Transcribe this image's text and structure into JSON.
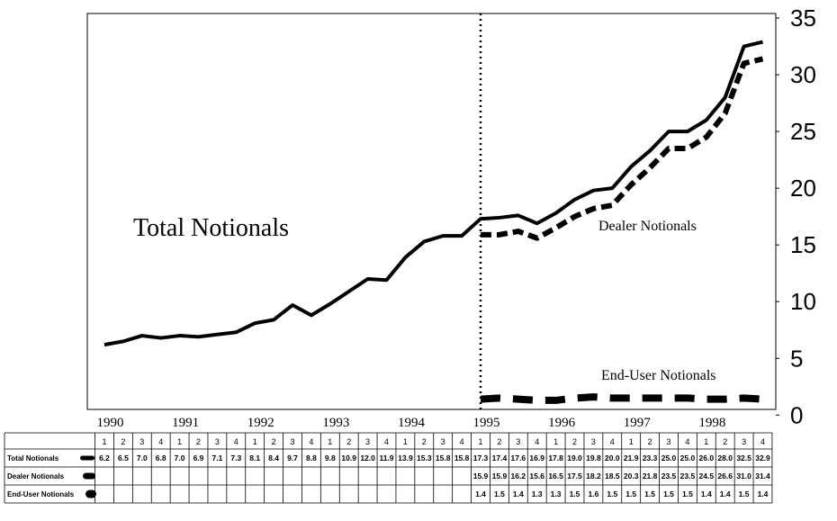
{
  "chart_data": {
    "type": "line",
    "annotations": [
      "Total Notionals",
      "Dealer Notionals",
      "End-User Notionals"
    ],
    "years": [
      1990,
      1991,
      1992,
      1993,
      1994,
      1995,
      1996,
      1997,
      1998
    ],
    "categories": [
      "1",
      "2",
      "3",
      "4",
      "1",
      "2",
      "3",
      "4",
      "1",
      "2",
      "3",
      "4",
      "1",
      "2",
      "3",
      "4",
      "1",
      "2",
      "3",
      "4",
      "1",
      "2",
      "3",
      "4",
      "1",
      "2",
      "3",
      "4",
      "1",
      "2",
      "3",
      "4",
      "1",
      "2",
      "3",
      "4"
    ],
    "series": [
      {
        "name": "Total Notionals",
        "color": "#000000",
        "values": [
          6.2,
          6.5,
          7.0,
          6.8,
          7.0,
          6.9,
          7.1,
          7.3,
          8.1,
          8.4,
          9.7,
          8.8,
          9.8,
          10.9,
          12.0,
          11.9,
          13.9,
          15.3,
          15.8,
          15.8,
          17.3,
          17.4,
          17.6,
          16.9,
          17.8,
          19.0,
          19.8,
          20.0,
          21.9,
          23.3,
          25.0,
          25.0,
          26.0,
          28.0,
          32.5,
          32.9
        ],
        "value_labels": [
          "6.2",
          "6.5",
          "7.0",
          "6.8",
          "7.0",
          "6.9",
          "7.1",
          "7.3",
          "8.1",
          "8.4",
          "9.7",
          "8.8",
          "9.8",
          "10.9",
          "12.0",
          "11.9",
          "13.9",
          "15.3",
          "15.8",
          "15.8",
          "17.3",
          "17.4",
          "17.6",
          "16.9",
          "17.8",
          "19.0",
          "19.8",
          "20.0",
          "21.9",
          "23.3",
          "25.0",
          "25.0",
          "26.0",
          "28.0",
          "32.5",
          "32.9"
        ]
      },
      {
        "name": "Dealer Notionals",
        "color": "#000000",
        "values": [
          null,
          null,
          null,
          null,
          null,
          null,
          null,
          null,
          null,
          null,
          null,
          null,
          null,
          null,
          null,
          null,
          null,
          null,
          null,
          null,
          15.9,
          15.9,
          16.2,
          15.6,
          16.5,
          17.5,
          18.2,
          18.5,
          20.3,
          21.8,
          23.5,
          23.5,
          24.5,
          26.6,
          31.0,
          31.4
        ],
        "value_labels": [
          null,
          null,
          null,
          null,
          null,
          null,
          null,
          null,
          null,
          null,
          null,
          null,
          null,
          null,
          null,
          null,
          null,
          null,
          null,
          null,
          "15.9",
          "15.9",
          "16.2",
          "15.6",
          "16.5",
          "17.5",
          "18.2",
          "18.5",
          "20.3",
          "21.8",
          "23.5",
          "23.5",
          "24.5",
          "26.6",
          "31.0",
          "31.4"
        ]
      },
      {
        "name": "End-User Notionals",
        "color": "#000000",
        "values": [
          null,
          null,
          null,
          null,
          null,
          null,
          null,
          null,
          null,
          null,
          null,
          null,
          null,
          null,
          null,
          null,
          null,
          null,
          null,
          null,
          1.4,
          1.5,
          1.4,
          1.3,
          1.3,
          1.5,
          1.6,
          1.5,
          1.5,
          1.5,
          1.5,
          1.5,
          1.4,
          1.4,
          1.5,
          1.4
        ],
        "value_labels": [
          null,
          null,
          null,
          null,
          null,
          null,
          null,
          null,
          null,
          null,
          null,
          null,
          null,
          null,
          null,
          null,
          null,
          null,
          null,
          null,
          "1.4",
          "1.5",
          "1.4",
          "1.3",
          "1.3",
          "1.5",
          "1.6",
          "1.5",
          "1.5",
          "1.5",
          "1.5",
          "1.5",
          "1.4",
          "1.4",
          "1.5",
          "1.4"
        ]
      }
    ],
    "ylim": [
      0.5,
      35.4
    ],
    "yticks": [
      0,
      5,
      10,
      15,
      20,
      25,
      30,
      35
    ]
  }
}
